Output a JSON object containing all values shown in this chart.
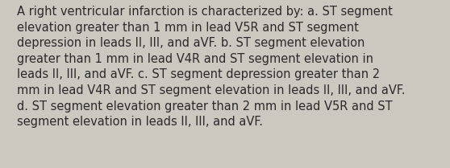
{
  "lines": [
    "A right ventricular infarction is characterized by: a. ST segment",
    "elevation greater than 1 mm in lead V5R and ST segment",
    "depression in leads II, III, and aVF. b. ST segment elevation",
    "greater than 1 mm in lead V4R and ST segment elevation in",
    "leads II, III, and aVF. c. ST segment depression greater than 2",
    "mm in lead V4R and ST segment elevation in leads II, III, and aVF.",
    "d. ST segment elevation greater than 2 mm in lead V5R and ST",
    "segment elevation in leads II, III, and aVF."
  ],
  "background_color": "#cbc8c0",
  "text_color": "#2b2b2b",
  "font_size": 10.5,
  "fig_width": 5.58,
  "fig_height": 2.09,
  "dpi": 100
}
